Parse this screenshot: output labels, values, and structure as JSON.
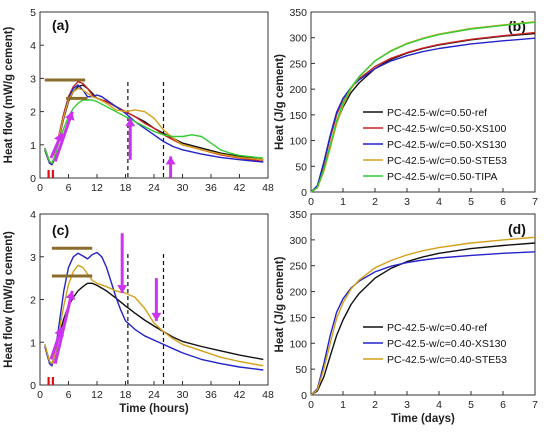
{
  "colors": {
    "ref": "#111111",
    "XS100": "#cc2222",
    "XS130": "#2323c8",
    "STE53": "#d4a019",
    "TIPA": "#33cc33",
    "arrow": "#cc33ee",
    "bar": "#8a6d2a",
    "marker": "#dd1111"
  },
  "chart_data": [
    {
      "id": "a",
      "type": "line",
      "panel_label": "(a)",
      "xlabel": "",
      "ylabel": "Heat flow (mW/g cement)",
      "xlim": [
        0,
        48
      ],
      "ylim": [
        0,
        5
      ],
      "xticks": [
        "0",
        "6",
        "12",
        "18",
        "24",
        "30",
        "36",
        "42",
        "48"
      ],
      "yticks": [
        "0",
        "1",
        "2",
        "3",
        "4",
        "5"
      ],
      "vlines_x": [
        18.5,
        26
      ],
      "series": [
        {
          "key": "ref",
          "x": [
            1,
            2,
            2.5,
            3,
            4,
            5,
            6,
            7,
            8,
            9,
            10,
            11,
            12,
            14,
            16,
            18,
            20,
            22,
            24,
            26,
            28,
            30,
            34,
            38,
            42,
            47
          ],
          "y": [
            0.9,
            0.5,
            0.45,
            0.6,
            1.2,
            1.8,
            2.3,
            2.6,
            2.75,
            2.8,
            2.7,
            2.55,
            2.4,
            2.3,
            2.15,
            2.0,
            1.85,
            1.7,
            1.5,
            1.35,
            1.2,
            1.05,
            0.9,
            0.75,
            0.65,
            0.55
          ]
        },
        {
          "key": "XS100",
          "x": [
            1,
            2,
            2.5,
            3,
            4,
            5,
            6,
            7,
            8,
            9,
            10,
            11,
            12,
            14,
            16,
            18,
            20,
            22,
            24,
            26,
            28,
            30,
            34,
            38,
            42,
            47
          ],
          "y": [
            0.85,
            0.45,
            0.4,
            0.6,
            1.3,
            1.95,
            2.45,
            2.75,
            2.9,
            2.85,
            2.7,
            2.5,
            2.4,
            2.3,
            2.15,
            2.0,
            1.85,
            1.65,
            1.5,
            1.3,
            1.15,
            1.0,
            0.85,
            0.7,
            0.6,
            0.5
          ]
        },
        {
          "key": "XS130",
          "x": [
            1,
            2,
            2.5,
            3,
            4,
            5,
            6,
            7,
            8,
            9,
            10,
            11,
            12,
            13,
            14,
            16,
            18,
            20,
            22,
            24,
            26,
            28,
            30,
            34,
            38,
            42,
            47
          ],
          "y": [
            0.85,
            0.45,
            0.4,
            0.55,
            1.2,
            1.85,
            2.4,
            2.7,
            2.8,
            2.65,
            2.45,
            2.45,
            2.5,
            2.45,
            2.35,
            2.15,
            1.95,
            1.7,
            1.5,
            1.3,
            1.1,
            0.95,
            0.85,
            0.72,
            0.62,
            0.55,
            0.48
          ]
        },
        {
          "key": "STE53",
          "x": [
            1,
            2,
            2.5,
            3,
            4,
            5,
            6,
            7,
            8,
            9,
            10,
            11,
            12,
            14,
            16,
            18,
            20,
            22,
            24,
            26,
            28,
            30,
            34,
            38,
            42,
            47
          ],
          "y": [
            0.9,
            0.5,
            0.45,
            0.6,
            1.25,
            1.85,
            2.35,
            2.6,
            2.7,
            2.65,
            2.55,
            2.45,
            2.4,
            2.25,
            2.05,
            2.0,
            2.05,
            2.0,
            1.8,
            1.45,
            1.2,
            1.0,
            0.85,
            0.72,
            0.62,
            0.55
          ]
        },
        {
          "key": "TIPA",
          "x": [
            1,
            2,
            2.5,
            3,
            4,
            5,
            6,
            7,
            8,
            9,
            10,
            11,
            12,
            14,
            16,
            18,
            20,
            22,
            24,
            26,
            28,
            30,
            32,
            34,
            36,
            38,
            40,
            42,
            47
          ],
          "y": [
            0.9,
            0.5,
            0.45,
            0.6,
            1.1,
            1.5,
            1.85,
            2.1,
            2.25,
            2.35,
            2.35,
            2.35,
            2.3,
            2.15,
            2.0,
            1.85,
            1.7,
            1.55,
            1.4,
            1.3,
            1.25,
            1.25,
            1.3,
            1.25,
            1.05,
            0.85,
            0.75,
            0.68,
            0.6
          ]
        }
      ]
    },
    {
      "id": "b",
      "type": "line",
      "panel_label": "(b)",
      "xlabel": "",
      "ylabel": "Heat (J/g cement)",
      "xlim": [
        0,
        7
      ],
      "ylim": [
        0,
        350
      ],
      "xticks": [
        "0",
        "1",
        "2",
        "3",
        "4",
        "5",
        "6",
        "7"
      ],
      "yticks": [
        "0",
        "50",
        "100",
        "150",
        "200",
        "250",
        "300",
        "350"
      ],
      "legend": [
        "PC-42.5-w/c=0.50-ref",
        "PC-42.5-w/c=0.50-XS100",
        "PC-42.5-w/c=0.50-XS130",
        "PC-42.5-w/c=0.50-STE53",
        "PC-42.5-w/c=0.50-TIPA"
      ],
      "series": [
        {
          "key": "ref",
          "x": [
            0,
            0.2,
            0.4,
            0.6,
            0.8,
            1,
            1.25,
            1.5,
            2,
            2.5,
            3,
            3.5,
            4,
            5,
            6,
            7
          ],
          "y": [
            0,
            10,
            45,
            90,
            135,
            165,
            193,
            212,
            240,
            258,
            270,
            279,
            286,
            296,
            303,
            308
          ]
        },
        {
          "key": "XS100",
          "x": [
            0,
            0.2,
            0.4,
            0.6,
            0.8,
            1,
            1.25,
            1.5,
            2,
            2.5,
            3,
            3.5,
            4,
            5,
            6,
            7
          ],
          "y": [
            0,
            12,
            55,
            105,
            150,
            180,
            203,
            220,
            244,
            260,
            271,
            280,
            287,
            297,
            304,
            310
          ]
        },
        {
          "key": "XS130",
          "x": [
            0,
            0.2,
            0.4,
            0.6,
            0.8,
            1,
            1.25,
            1.5,
            2,
            2.5,
            3,
            3.5,
            4,
            5,
            6,
            7
          ],
          "y": [
            0,
            12,
            58,
            110,
            155,
            182,
            203,
            218,
            240,
            255,
            265,
            273,
            279,
            288,
            294,
            299
          ]
        },
        {
          "key": "STE53",
          "x": [
            0,
            0.2,
            0.4,
            0.6,
            0.8,
            1,
            1.25,
            1.5,
            2,
            2.5,
            3,
            3.5,
            4,
            5,
            6,
            7
          ],
          "y": [
            0,
            8,
            40,
            85,
            132,
            168,
            200,
            223,
            255,
            275,
            289,
            299,
            307,
            318,
            325,
            331
          ]
        },
        {
          "key": "TIPA",
          "x": [
            0,
            0.2,
            0.4,
            0.6,
            0.8,
            1,
            1.25,
            1.5,
            2,
            2.5,
            3,
            3.5,
            4,
            5,
            6,
            7
          ],
          "y": [
            0,
            9,
            44,
            90,
            138,
            173,
            203,
            224,
            255,
            274,
            288,
            298,
            306,
            317,
            324,
            330
          ]
        }
      ]
    },
    {
      "id": "c",
      "type": "line",
      "panel_label": "(c)",
      "xlabel": "Time (hours)",
      "ylabel": "Heat flow (mW/g cement)",
      "xlim": [
        0,
        48
      ],
      "ylim": [
        0,
        4
      ],
      "xticks": [
        "0",
        "6",
        "12",
        "18",
        "24",
        "30",
        "36",
        "42",
        "48"
      ],
      "yticks": [
        "0",
        "1",
        "2",
        "3",
        "4"
      ],
      "vlines_x": [
        18.5,
        26
      ],
      "series": [
        {
          "key": "ref",
          "x": [
            1,
            2,
            2.5,
            3,
            4,
            5,
            6,
            7,
            8,
            9,
            10,
            11,
            12,
            14,
            16,
            18,
            20,
            22,
            24,
            26,
            28,
            30,
            34,
            38,
            42,
            47
          ],
          "y": [
            0.95,
            0.55,
            0.5,
            0.65,
            1.15,
            1.55,
            1.85,
            2.05,
            2.2,
            2.3,
            2.38,
            2.38,
            2.33,
            2.2,
            2.03,
            1.85,
            1.68,
            1.52,
            1.38,
            1.25,
            1.12,
            1.02,
            0.9,
            0.8,
            0.7,
            0.6
          ]
        },
        {
          "key": "XS130",
          "x": [
            1,
            2,
            2.5,
            3,
            4,
            5,
            6,
            7,
            8,
            9,
            10,
            11,
            12,
            13,
            14,
            15,
            16,
            17,
            18,
            20,
            22,
            24,
            26,
            28,
            30,
            34,
            38,
            42,
            47
          ],
          "y": [
            0.9,
            0.5,
            0.45,
            0.65,
            1.4,
            2.2,
            2.75,
            3.0,
            3.08,
            3.02,
            2.95,
            3.05,
            3.1,
            3.0,
            2.75,
            2.4,
            2.05,
            1.75,
            1.5,
            1.3,
            1.15,
            1.05,
            0.95,
            0.85,
            0.75,
            0.6,
            0.5,
            0.42,
            0.35
          ]
        },
        {
          "key": "STE53",
          "x": [
            1,
            2,
            2.5,
            3,
            4,
            5,
            6,
            7,
            8,
            9,
            10,
            11,
            12,
            14,
            16,
            18,
            20,
            22,
            24,
            26,
            28,
            30,
            34,
            38,
            42,
            47
          ],
          "y": [
            0.95,
            0.55,
            0.5,
            0.65,
            1.25,
            1.85,
            2.35,
            2.65,
            2.8,
            2.75,
            2.6,
            2.45,
            2.38,
            2.3,
            2.2,
            2.15,
            2.05,
            1.8,
            1.45,
            1.25,
            1.08,
            0.95,
            0.8,
            0.65,
            0.55,
            0.45
          ]
        }
      ]
    },
    {
      "id": "d",
      "type": "line",
      "panel_label": "(d)",
      "xlabel": "Time (days)",
      "ylabel": "Heat (J/g cement)",
      "xlim": [
        0,
        7
      ],
      "ylim": [
        0,
        350
      ],
      "xticks": [
        "0",
        "1",
        "2",
        "3",
        "4",
        "5",
        "6",
        "7"
      ],
      "yticks": [
        "0",
        "50",
        "100",
        "150",
        "200",
        "250",
        "300",
        "350"
      ],
      "legend": [
        "PC-42.5-w/c=0.40-ref",
        "PC-42.5-w/c=0.40-XS130",
        "PC-42.5-w/c=0.40-STE53"
      ],
      "series": [
        {
          "key": "ref",
          "x": [
            0,
            0.2,
            0.4,
            0.6,
            0.8,
            1,
            1.25,
            1.5,
            2,
            2.5,
            3,
            3.5,
            4,
            5,
            6,
            7
          ],
          "y": [
            0,
            8,
            35,
            75,
            115,
            145,
            175,
            196,
            226,
            245,
            258,
            267,
            274,
            283,
            289,
            294
          ]
        },
        {
          "key": "XS130",
          "x": [
            0,
            0.2,
            0.4,
            0.6,
            0.8,
            1,
            1.25,
            1.5,
            2,
            2.5,
            3,
            3.5,
            4,
            5,
            6,
            7
          ],
          "y": [
            0,
            12,
            60,
            115,
            160,
            186,
            207,
            220,
            238,
            249,
            256,
            261,
            265,
            270,
            274,
            277
          ]
        },
        {
          "key": "STE53",
          "x": [
            0,
            0.2,
            0.4,
            0.6,
            0.8,
            1,
            1.25,
            1.5,
            2,
            2.5,
            3,
            3.5,
            4,
            5,
            6,
            7
          ],
          "y": [
            0,
            10,
            50,
            100,
            148,
            178,
            205,
            222,
            246,
            260,
            271,
            279,
            285,
            294,
            300,
            305
          ]
        }
      ]
    }
  ]
}
